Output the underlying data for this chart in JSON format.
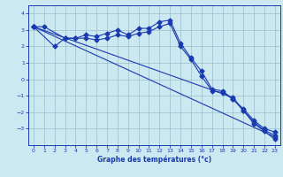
{
  "xlabel": "Graphe des températures (°c)",
  "background_color": "#cce8f0",
  "grid_color": "#9bbfcc",
  "line_color": "#1a3ab0",
  "xlim": [
    -0.5,
    23.5
  ],
  "ylim": [
    -4.0,
    4.5
  ],
  "yticks": [
    -3,
    -2,
    -1,
    0,
    1,
    2,
    3,
    4
  ],
  "xticks": [
    0,
    1,
    2,
    3,
    4,
    5,
    6,
    7,
    8,
    9,
    10,
    11,
    12,
    13,
    14,
    15,
    16,
    17,
    18,
    19,
    20,
    21,
    22,
    23
  ],
  "line1_x": [
    0,
    1,
    3,
    4,
    5,
    6,
    7,
    8,
    9,
    10,
    11,
    12,
    13,
    14,
    15,
    16,
    17,
    18,
    19,
    20,
    21,
    22,
    23
  ],
  "line1_y": [
    3.2,
    3.2,
    2.5,
    2.5,
    2.7,
    2.6,
    2.8,
    3.0,
    2.7,
    3.1,
    3.1,
    3.5,
    3.6,
    2.2,
    1.3,
    0.5,
    -0.6,
    -0.7,
    -1.2,
    -1.8,
    -2.5,
    -3.0,
    -3.2
  ],
  "line2_x": [
    0,
    2,
    3,
    4,
    5,
    6,
    7,
    8,
    9,
    10,
    11,
    12,
    13,
    14,
    15,
    16,
    17,
    18,
    19,
    20,
    21,
    22,
    23
  ],
  "line2_y": [
    3.2,
    2.0,
    2.5,
    2.5,
    2.5,
    2.4,
    2.5,
    2.7,
    2.6,
    2.8,
    2.9,
    3.2,
    3.4,
    2.0,
    1.2,
    0.2,
    -0.7,
    -0.8,
    -1.2,
    -1.9,
    -2.6,
    -3.1,
    -3.4
  ],
  "line3_x": [
    0,
    23
  ],
  "line3_y": [
    3.2,
    -3.5
  ],
  "line4_x": [
    0,
    19,
    20,
    21,
    22,
    23
  ],
  "line4_y": [
    3.2,
    -1.1,
    -1.9,
    -2.7,
    -3.15,
    -3.65
  ]
}
